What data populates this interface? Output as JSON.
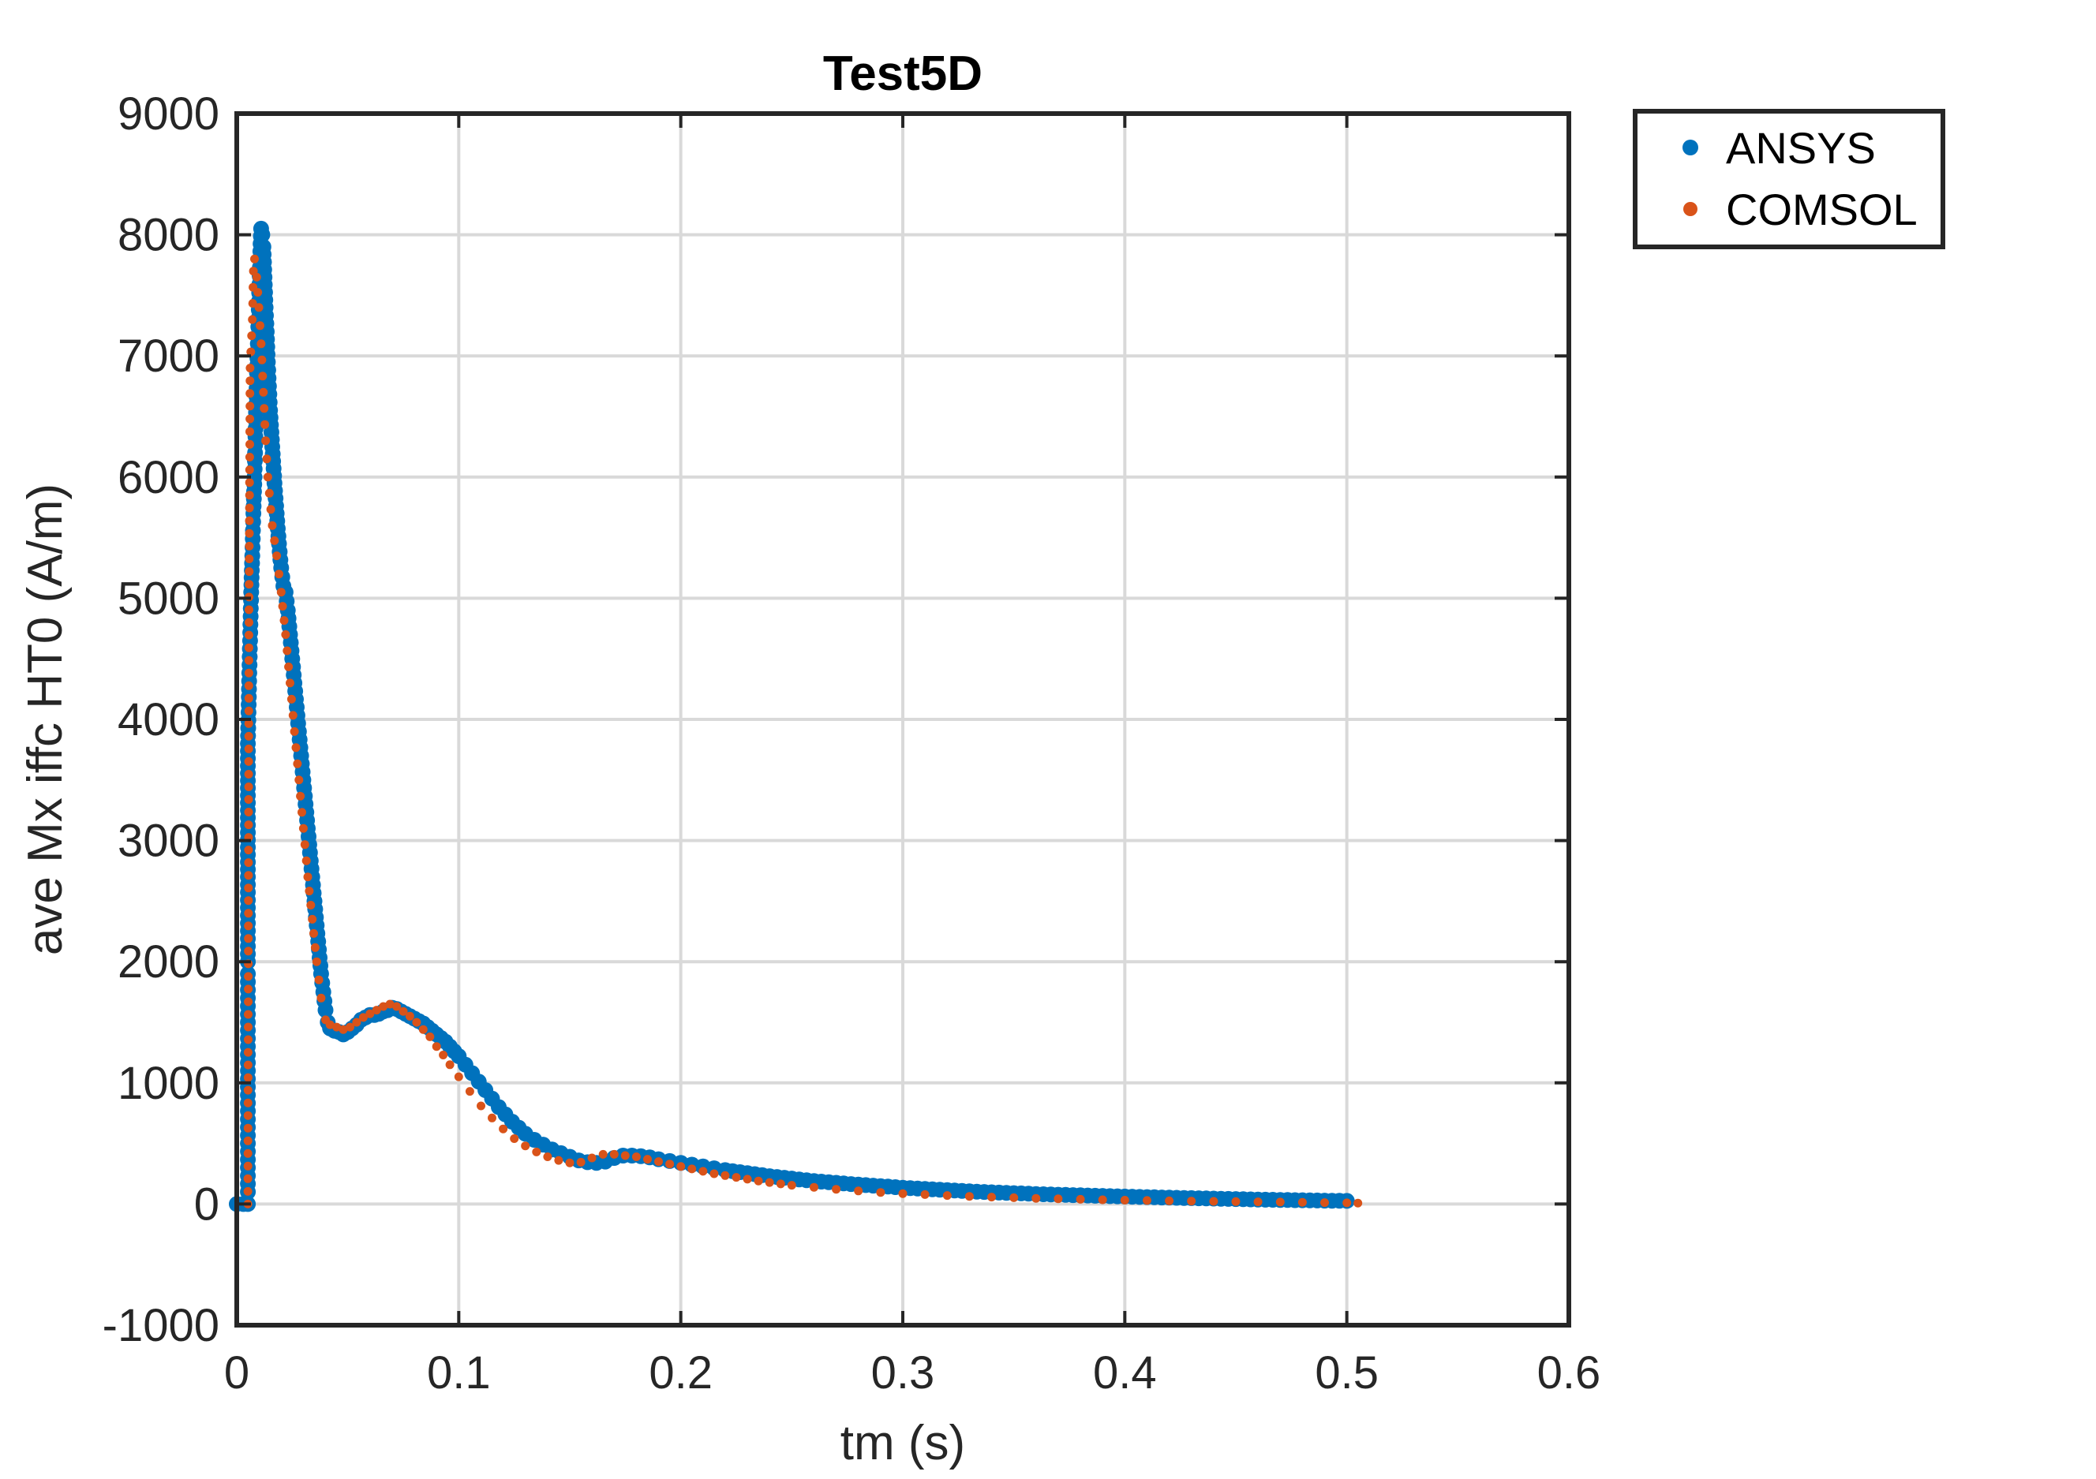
{
  "chart_data": {
    "type": "scatter",
    "title": "Test5D",
    "xlabel": "tm (s)",
    "ylabel": "ave Mx iffc HT0 (A/m)",
    "xlim": [
      0,
      0.6
    ],
    "ylim": [
      -1000,
      9000
    ],
    "xticks": [
      0,
      0.1,
      0.2,
      0.3,
      0.4,
      0.5,
      0.6
    ],
    "xtick_labels": [
      "0",
      "0.1",
      "0.2",
      "0.3",
      "0.4",
      "0.5",
      "0.6"
    ],
    "yticks": [
      -1000,
      0,
      1000,
      2000,
      3000,
      4000,
      5000,
      6000,
      7000,
      8000,
      9000
    ],
    "ytick_labels": [
      "-1000",
      "0",
      "1000",
      "2000",
      "3000",
      "4000",
      "5000",
      "6000",
      "7000",
      "8000",
      "9000"
    ],
    "grid": true,
    "legend_position": "outside-top-right",
    "series": [
      {
        "name": "ANSYS",
        "color": "#0072BD",
        "marker": "large-dot",
        "x": [
          0.0,
          0.003,
          0.005,
          0.005,
          0.005,
          0.005,
          0.005,
          0.005,
          0.005,
          0.005,
          0.005,
          0.005,
          0.005,
          0.005,
          0.005,
          0.005,
          0.005,
          0.0055,
          0.006,
          0.0065,
          0.007,
          0.0075,
          0.008,
          0.0085,
          0.009,
          0.0095,
          0.01,
          0.0105,
          0.011,
          0.0115,
          0.012,
          0.0125,
          0.013,
          0.0135,
          0.014,
          0.015,
          0.016,
          0.017,
          0.018,
          0.019,
          0.02,
          0.021,
          0.022,
          0.023,
          0.024,
          0.025,
          0.026,
          0.027,
          0.028,
          0.029,
          0.03,
          0.031,
          0.032,
          0.033,
          0.034,
          0.035,
          0.036,
          0.037,
          0.038,
          0.039,
          0.04,
          0.041,
          0.042,
          0.044,
          0.046,
          0.048,
          0.05,
          0.052,
          0.054,
          0.056,
          0.058,
          0.06,
          0.062,
          0.064,
          0.066,
          0.068,
          0.07,
          0.072,
          0.074,
          0.076,
          0.078,
          0.08,
          0.082,
          0.084,
          0.086,
          0.088,
          0.09,
          0.092,
          0.094,
          0.096,
          0.098,
          0.1,
          0.103,
          0.106,
          0.109,
          0.112,
          0.115,
          0.118,
          0.121,
          0.124,
          0.127,
          0.13,
          0.134,
          0.138,
          0.142,
          0.146,
          0.15,
          0.154,
          0.158,
          0.162,
          0.166,
          0.17,
          0.174,
          0.178,
          0.182,
          0.186,
          0.19,
          0.195,
          0.2,
          0.205,
          0.21,
          0.215,
          0.22,
          0.23,
          0.24,
          0.25,
          0.26,
          0.27,
          0.28,
          0.29,
          0.3,
          0.31,
          0.32,
          0.33,
          0.34,
          0.35,
          0.36,
          0.37,
          0.38,
          0.39,
          0.4,
          0.41,
          0.42,
          0.43,
          0.44,
          0.45,
          0.46,
          0.47,
          0.48,
          0.49,
          0.5
        ],
        "y": [
          0,
          0,
          0,
          100,
          300,
          500,
          700,
          900,
          1100,
          1300,
          1500,
          1700,
          1900,
          2000,
          2700,
          3250,
          3800,
          4250,
          4650,
          5050,
          5350,
          5700,
          6000,
          6400,
          6800,
          7100,
          7450,
          7800,
          8050,
          8000,
          7900,
          7650,
          7400,
          7200,
          6950,
          6550,
          6250,
          5950,
          5700,
          5450,
          5250,
          5100,
          5050,
          4900,
          4700,
          4500,
          4300,
          4100,
          3900,
          3700,
          3500,
          3300,
          3100,
          2900,
          2700,
          2500,
          2300,
          2100,
          1900,
          1750,
          1600,
          1500,
          1450,
          1430,
          1420,
          1400,
          1420,
          1450,
          1480,
          1520,
          1540,
          1560,
          1560,
          1570,
          1590,
          1600,
          1620,
          1610,
          1590,
          1570,
          1550,
          1530,
          1510,
          1490,
          1460,
          1430,
          1400,
          1370,
          1340,
          1300,
          1260,
          1220,
          1150,
          1080,
          1010,
          940,
          870,
          800,
          740,
          680,
          630,
          580,
          530,
          490,
          450,
          420,
          390,
          360,
          345,
          340,
          350,
          380,
          400,
          400,
          395,
          385,
          370,
          355,
          340,
          325,
          310,
          295,
          280,
          255,
          230,
          210,
          190,
          175,
          160,
          148,
          135,
          125,
          115,
          105,
          97,
          90,
          83,
          77,
          72,
          67,
          62,
          57,
          53,
          49,
          45,
          41,
          37,
          34,
          31,
          28,
          26
        ]
      },
      {
        "name": "COMSOL",
        "color": "#D95319",
        "marker": "small-dot",
        "x": [
          0.005,
          0.0055,
          0.006,
          0.007,
          0.0075,
          0.008,
          0.009,
          0.01,
          0.011,
          0.012,
          0.013,
          0.014,
          0.016,
          0.018,
          0.02,
          0.022,
          0.024,
          0.026,
          0.028,
          0.03,
          0.032,
          0.034,
          0.036,
          0.038,
          0.04,
          0.042,
          0.045,
          0.048,
          0.051,
          0.054,
          0.057,
          0.06,
          0.063,
          0.066,
          0.069,
          0.072,
          0.075,
          0.078,
          0.081,
          0.084,
          0.087,
          0.09,
          0.093,
          0.096,
          0.1,
          0.105,
          0.11,
          0.115,
          0.12,
          0.125,
          0.13,
          0.135,
          0.14,
          0.145,
          0.15,
          0.155,
          0.16,
          0.165,
          0.17,
          0.175,
          0.18,
          0.185,
          0.19,
          0.195,
          0.2,
          0.205,
          0.21,
          0.215,
          0.22,
          0.225,
          0.23,
          0.235,
          0.24,
          0.245,
          0.25,
          0.26,
          0.27,
          0.28,
          0.29,
          0.3,
          0.31,
          0.32,
          0.33,
          0.34,
          0.35,
          0.36,
          0.37,
          0.38,
          0.39,
          0.4,
          0.41,
          0.42,
          0.43,
          0.44,
          0.45,
          0.46,
          0.47,
          0.48,
          0.49,
          0.5,
          0.505
        ],
        "y": [
          0,
          4800,
          6900,
          7300,
          7700,
          7800,
          7650,
          7400,
          7100,
          6700,
          6300,
          6000,
          5600,
          5350,
          5050,
          4700,
          4300,
          3900,
          3500,
          3100,
          2700,
          2350,
          2000,
          1700,
          1520,
          1480,
          1460,
          1440,
          1460,
          1500,
          1540,
          1570,
          1600,
          1630,
          1650,
          1630,
          1590,
          1550,
          1500,
          1440,
          1380,
          1300,
          1230,
          1150,
          1050,
          930,
          810,
          710,
          620,
          540,
          480,
          430,
          390,
          360,
          340,
          345,
          380,
          410,
          410,
          400,
          390,
          370,
          350,
          330,
          310,
          290,
          270,
          250,
          235,
          220,
          205,
          190,
          178,
          166,
          155,
          138,
          122,
          108,
          96,
          86,
          78,
          70,
          63,
          57,
          52,
          47,
          43,
          39,
          35,
          32,
          29,
          26,
          24,
          22,
          20,
          18,
          16,
          14,
          12,
          10,
          8
        ]
      }
    ]
  }
}
